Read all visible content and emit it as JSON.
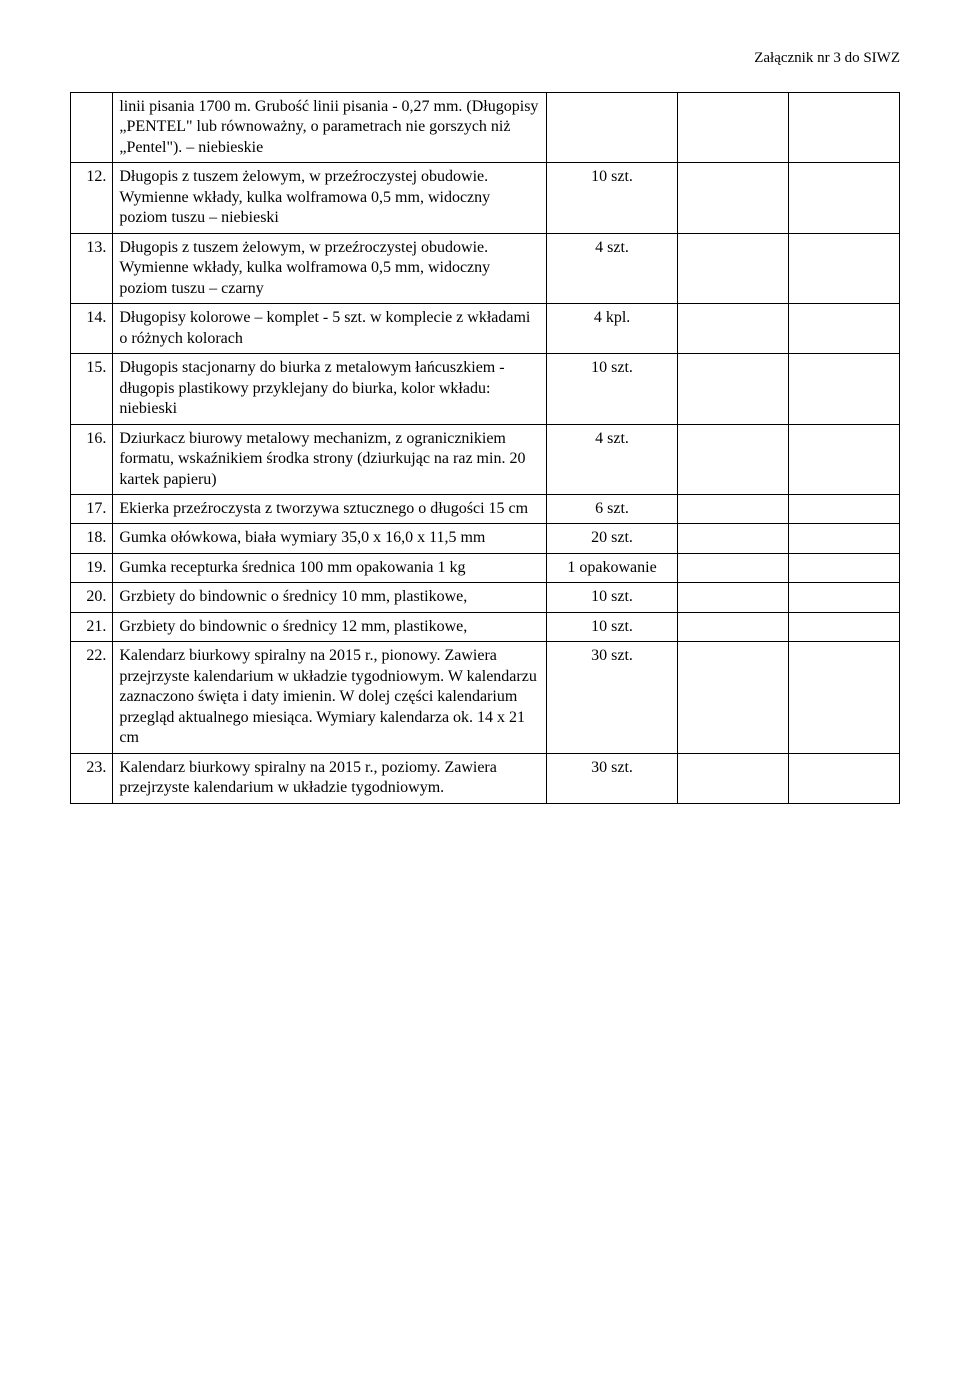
{
  "header": {
    "attachment_label": "Załącznik nr 3 do SIWZ"
  },
  "table": {
    "rows": [
      {
        "num": "",
        "desc": "linii pisania 1700 m. Grubość linii pisania - 0,27 mm. (Długopisy „PENTEL\" lub równoważny, o parametrach nie gorszych niż „Pentel\"). – niebieskie",
        "qty": ""
      },
      {
        "num": "12.",
        "desc": "Długopis z tuszem żelowym, w przeźroczystej obudowie. Wymienne wkłady, kulka wolframowa 0,5 mm, widoczny poziom tuszu – niebieski",
        "qty": "10 szt."
      },
      {
        "num": "13.",
        "desc": "Długopis z tuszem żelowym, w przeźroczystej obudowie. Wymienne wkłady, kulka wolframowa 0,5 mm, widoczny poziom tuszu – czarny",
        "qty": "4 szt."
      },
      {
        "num": "14.",
        "desc": "Długopisy kolorowe – komplet - 5 szt. w komplecie z wkładami o różnych kolorach",
        "qty": "4 kpl."
      },
      {
        "num": "15.",
        "desc": "Długopis stacjonarny do biurka z metalowym łańcuszkiem - długopis plastikowy przyklejany do biurka, kolor wkładu: niebieski",
        "qty": "10 szt.",
        "justify": true
      },
      {
        "num": "16.",
        "desc": "Dziurkacz biurowy metalowy mechanizm, z ogranicznikiem formatu, wskaźnikiem środka strony (dziurkując na raz min. 20 kartek papieru)",
        "qty": "4 szt."
      },
      {
        "num": "17.",
        "desc": "Ekierka przeźroczysta z tworzywa sztucznego o długości 15 cm",
        "qty": "6 szt."
      },
      {
        "num": "18.",
        "desc": "Gumka ołówkowa, biała wymiary 35,0 x 16,0 x 11,5 mm",
        "qty": "20 szt."
      },
      {
        "num": "19.",
        "desc": "Gumka recepturka średnica 100 mm opakowania 1 kg",
        "qty": "1 opakowanie"
      },
      {
        "num": "20.",
        "desc": "Grzbiety do bindownic o średnicy 10 mm, plastikowe,",
        "qty": "10 szt."
      },
      {
        "num": "21.",
        "desc": "Grzbiety do bindownic o średnicy 12 mm, plastikowe,",
        "qty": "10 szt."
      },
      {
        "num": "22.",
        "desc": "Kalendarz biurkowy spiralny na 2015 r., pionowy. Zawiera przejrzyste kalendarium w układzie tygodniowym. W kalendarzu zaznaczono święta i daty imienin. W dolej części kalendarium przegląd aktualnego miesiąca. Wymiary kalendarza ok. 14 x 21 cm",
        "qty": "30 szt."
      },
      {
        "num": "23.",
        "desc": "Kalendarz biurkowy spiralny na 2015 r., poziomy. Zawiera przejrzyste kalendarium w układzie tygodniowym.",
        "qty": "30 szt."
      }
    ]
  }
}
